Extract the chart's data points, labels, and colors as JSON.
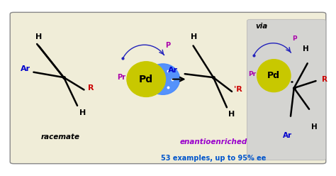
{
  "bg_color": "#f0edd8",
  "outer_bg": "#ffffff",
  "box_border_color": "#888888",
  "figsize": [
    4.74,
    2.48
  ],
  "dpi": 100,
  "racemate_label": "racemate",
  "enantioenriched_label": "enantioenriched",
  "examples_label": "53 examples, up to 95% ee",
  "via_label": "via",
  "pd_label": "Pd",
  "ar_color": "#0000cc",
  "r_color": "#cc0000",
  "p_color": "#aa00aa",
  "pr_color": "#aa00aa",
  "h_color": "#000000",
  "enantioenriched_color": "#9900cc",
  "examples_color": "#0055cc",
  "racemate_color": "#000000",
  "via_color": "#000000",
  "pd_yellow": "#c8c800",
  "blue_halo": "#4488ff",
  "via_box_color": "#d0d0d0"
}
